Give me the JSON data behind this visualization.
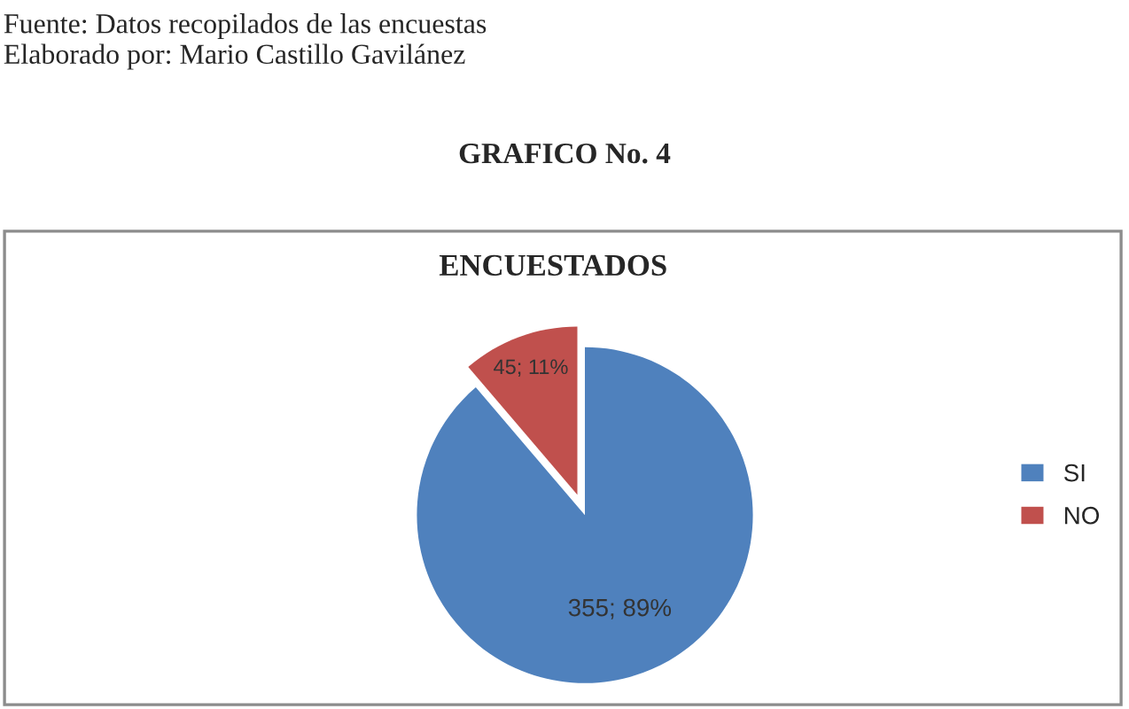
{
  "chart_data": {
    "type": "pie",
    "title": "ENCUESTADOS",
    "categories": [
      "SI",
      "NO"
    ],
    "values": [
      355,
      45
    ],
    "colors": [
      "#4f81bd",
      "#c0504d"
    ],
    "value_labels": [
      "355; 89%",
      "45; 11%"
    ],
    "legend": "right",
    "annotations": [
      "Fuente: Datos recopilados de las encuestas",
      "Elaborado por: Mario Castillo Gavilánez",
      "GRAFICO No. 4"
    ]
  }
}
